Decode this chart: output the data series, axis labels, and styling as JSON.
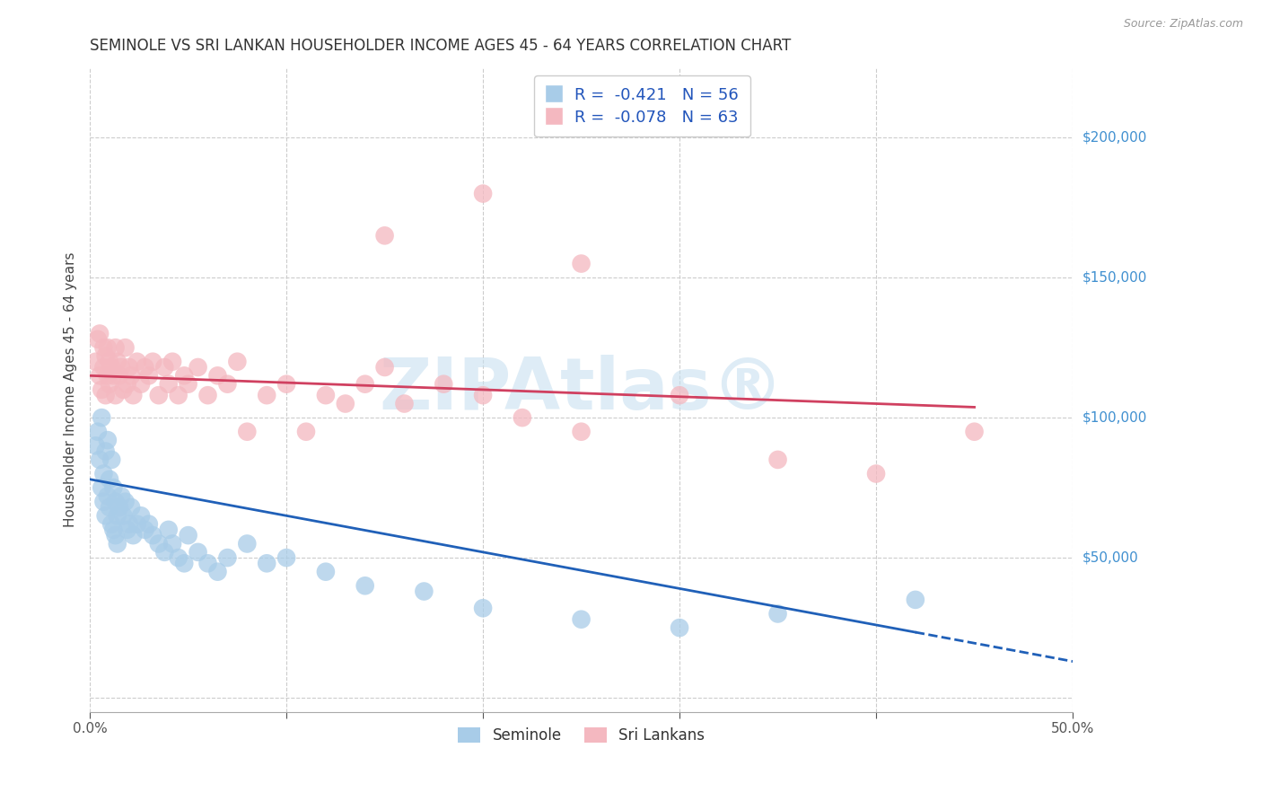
{
  "title": "SEMINOLE VS SRI LANKAN HOUSEHOLDER INCOME AGES 45 - 64 YEARS CORRELATION CHART",
  "source": "Source: ZipAtlas.com",
  "ylabel": "Householder Income Ages 45 - 64 years",
  "xlim": [
    0.0,
    0.5
  ],
  "ylim": [
    -5000,
    225000
  ],
  "yticks": [
    0,
    50000,
    100000,
    150000,
    200000
  ],
  "ytick_labels": [
    "",
    "$50,000",
    "$100,000",
    "$150,000",
    "$200,000"
  ],
  "xticks": [
    0.0,
    0.1,
    0.2,
    0.3,
    0.4,
    0.5
  ],
  "xtick_labels_show": [
    "0.0%",
    "",
    "",
    "",
    "",
    "50.0%"
  ],
  "seminole_R": -0.421,
  "seminole_N": 56,
  "srilankan_R": -0.078,
  "srilankan_N": 63,
  "seminole_color": "#a8cce8",
  "srilankan_color": "#f4b8c0",
  "seminole_line_color": "#2060b8",
  "srilankan_line_color": "#d04060",
  "background_color": "#ffffff",
  "grid_color": "#cccccc",
  "title_color": "#333333",
  "axis_label_color": "#444444",
  "tick_label_color_y": "#4090d0",
  "watermark_color": "#c8e0f0",
  "watermark_text": "ZIPAtlas®",
  "legend_label_color": "#2255bb",
  "seminole_line_intercept": 78000,
  "seminole_line_slope": -130000,
  "srilankan_line_intercept": 115000,
  "srilankan_line_slope": -25000,
  "seminole_x": [
    0.003,
    0.004,
    0.005,
    0.006,
    0.006,
    0.007,
    0.007,
    0.008,
    0.008,
    0.009,
    0.009,
    0.01,
    0.01,
    0.011,
    0.011,
    0.012,
    0.012,
    0.013,
    0.013,
    0.014,
    0.014,
    0.015,
    0.016,
    0.017,
    0.018,
    0.019,
    0.02,
    0.021,
    0.022,
    0.024,
    0.026,
    0.028,
    0.03,
    0.032,
    0.035,
    0.038,
    0.04,
    0.042,
    0.045,
    0.048,
    0.05,
    0.055,
    0.06,
    0.065,
    0.07,
    0.08,
    0.09,
    0.1,
    0.12,
    0.14,
    0.17,
    0.2,
    0.25,
    0.3,
    0.35,
    0.42
  ],
  "seminole_y": [
    90000,
    95000,
    85000,
    100000,
    75000,
    80000,
    70000,
    88000,
    65000,
    92000,
    72000,
    78000,
    68000,
    85000,
    62000,
    75000,
    60000,
    70000,
    58000,
    65000,
    55000,
    68000,
    72000,
    65000,
    70000,
    60000,
    62000,
    68000,
    58000,
    62000,
    65000,
    60000,
    62000,
    58000,
    55000,
    52000,
    60000,
    55000,
    50000,
    48000,
    58000,
    52000,
    48000,
    45000,
    50000,
    55000,
    48000,
    50000,
    45000,
    40000,
    38000,
    32000,
    28000,
    25000,
    30000,
    35000
  ],
  "srilankan_x": [
    0.003,
    0.004,
    0.005,
    0.005,
    0.006,
    0.007,
    0.007,
    0.008,
    0.008,
    0.009,
    0.009,
    0.01,
    0.01,
    0.011,
    0.012,
    0.013,
    0.013,
    0.014,
    0.015,
    0.016,
    0.017,
    0.018,
    0.019,
    0.02,
    0.021,
    0.022,
    0.024,
    0.026,
    0.028,
    0.03,
    0.032,
    0.035,
    0.038,
    0.04,
    0.042,
    0.045,
    0.048,
    0.05,
    0.055,
    0.06,
    0.065,
    0.07,
    0.075,
    0.08,
    0.09,
    0.1,
    0.11,
    0.12,
    0.13,
    0.14,
    0.15,
    0.16,
    0.18,
    0.2,
    0.22,
    0.25,
    0.3,
    0.35,
    0.4,
    0.45,
    0.15,
    0.2,
    0.25
  ],
  "srilankan_y": [
    120000,
    128000,
    115000,
    130000,
    110000,
    125000,
    118000,
    122000,
    108000,
    115000,
    125000,
    120000,
    112000,
    118000,
    115000,
    125000,
    108000,
    120000,
    115000,
    118000,
    110000,
    125000,
    112000,
    118000,
    115000,
    108000,
    120000,
    112000,
    118000,
    115000,
    120000,
    108000,
    118000,
    112000,
    120000,
    108000,
    115000,
    112000,
    118000,
    108000,
    115000,
    112000,
    120000,
    95000,
    108000,
    112000,
    95000,
    108000,
    105000,
    112000,
    118000,
    105000,
    112000,
    108000,
    100000,
    95000,
    108000,
    85000,
    80000,
    95000,
    165000,
    180000,
    155000
  ]
}
